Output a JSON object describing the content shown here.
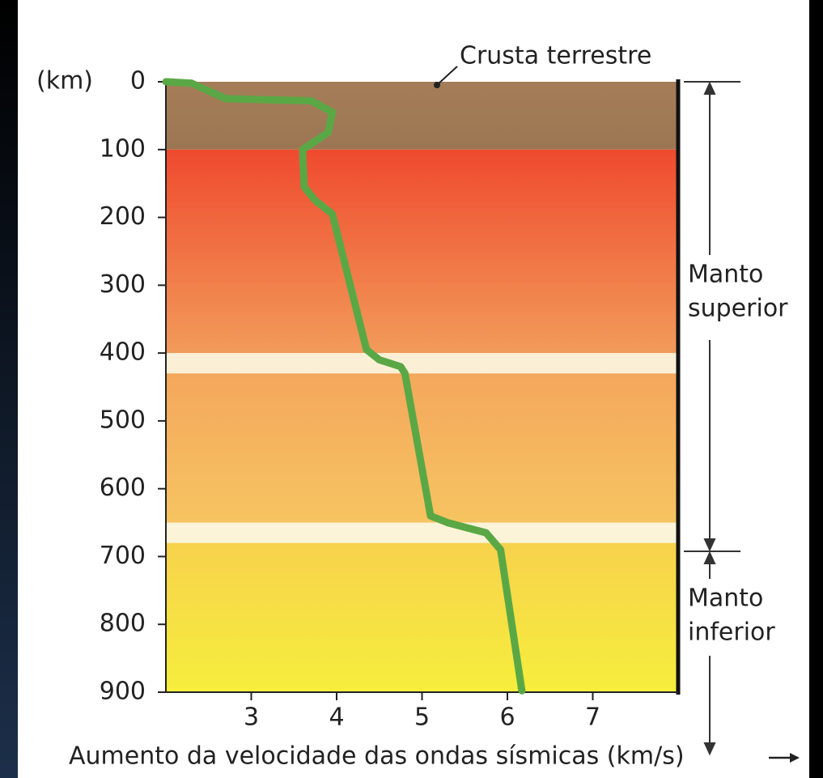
{
  "chart_data": {
    "type": "line",
    "x_label": "Aumento da velocidade das ondas sísmicas (km/s)",
    "y_unit_label": "(km)",
    "xlim": [
      2,
      8
    ],
    "xticks": [
      3,
      4,
      5,
      6,
      7
    ],
    "ylim": [
      0,
      900
    ],
    "yticks": [
      0,
      100,
      200,
      300,
      400,
      500,
      600,
      700,
      800,
      900
    ],
    "y_inverted": true,
    "color": "#5aa845",
    "x": [
      2.0,
      2.3,
      2.7,
      3.7,
      3.95,
      3.9,
      3.6,
      3.62,
      3.75,
      3.95,
      4.35,
      4.5,
      4.75,
      4.8,
      5.1,
      5.3,
      5.75,
      5.92,
      6.17
    ],
    "values": [
      0,
      2,
      25,
      28,
      45,
      75,
      100,
      155,
      175,
      195,
      395,
      410,
      420,
      430,
      640,
      650,
      665,
      690,
      898
    ],
    "layers": [
      {
        "from": 0,
        "to": 100,
        "colors": [
          "#a57d58",
          "#9c7653"
        ]
      },
      {
        "from": 100,
        "to": 400,
        "colors": [
          "#ef4a2e",
          "#f29b5a"
        ]
      },
      {
        "from": 400,
        "to": 430,
        "colors": [
          "#fbf0d6",
          "#fbf0d6"
        ]
      },
      {
        "from": 430,
        "to": 650,
        "colors": [
          "#f4a75c",
          "#f6c461"
        ]
      },
      {
        "from": 650,
        "to": 680,
        "colors": [
          "#fbf4d8",
          "#fbf4d8"
        ]
      },
      {
        "from": 680,
        "to": 900,
        "colors": [
          "#f7d24c",
          "#f6ee3c"
        ]
      }
    ],
    "annotations": {
      "crust": "Crusta terrestre",
      "upper_mantle": [
        "Manto",
        "superior"
      ],
      "lower_mantle": [
        "Manto",
        "inferior"
      ]
    }
  }
}
